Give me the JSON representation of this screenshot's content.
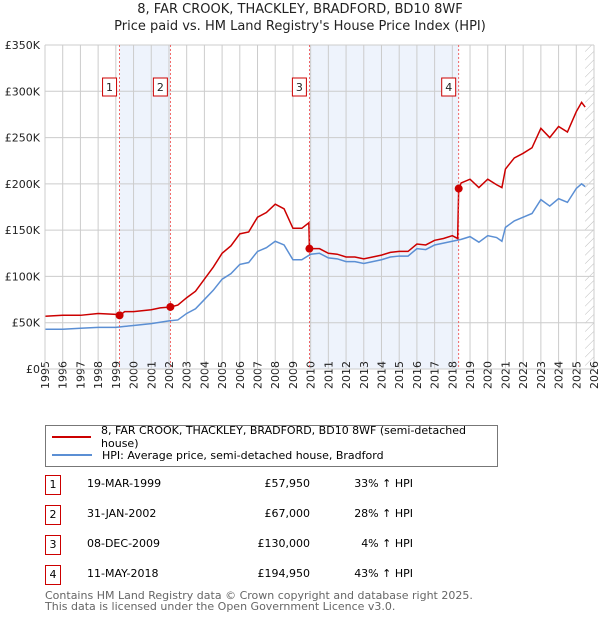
{
  "chart_data": {
    "type": "line",
    "title": "8, FAR CROOK, THACKLEY, BRADFORD, BD10 8WF",
    "subtitle": "Price paid vs. HM Land Registry's House Price Index (HPI)",
    "xlim": [
      1995,
      2026
    ],
    "ylim": [
      0,
      350000
    ],
    "x_ticks": [
      "1995",
      "1996",
      "1997",
      "1998",
      "1999",
      "2000",
      "2001",
      "2002",
      "2003",
      "2004",
      "2005",
      "2006",
      "2007",
      "2008",
      "2009",
      "2010",
      "2011",
      "2012",
      "2013",
      "2014",
      "2015",
      "2016",
      "2017",
      "2018",
      "2019",
      "2020",
      "2021",
      "2022",
      "2023",
      "2024",
      "2025",
      "2026"
    ],
    "y_ticks": [
      {
        "v": 0,
        "l": "£0"
      },
      {
        "v": 50000,
        "l": "£50K"
      },
      {
        "v": 100000,
        "l": "£100K"
      },
      {
        "v": 150000,
        "l": "£150K"
      },
      {
        "v": 200000,
        "l": "£200K"
      },
      {
        "v": 250000,
        "l": "£250K"
      },
      {
        "v": 300000,
        "l": "£300K"
      },
      {
        "v": 350000,
        "l": "£350K"
      }
    ],
    "grid": true,
    "series": [
      {
        "name": "8, FAR CROOK, THACKLEY, BRADFORD, BD10 8WF (semi-detached house)",
        "color": "#cc0000",
        "points": [
          [
            1995,
            57
          ],
          [
            1996,
            58
          ],
          [
            1997,
            58
          ],
          [
            1998,
            60
          ],
          [
            1999,
            59
          ],
          [
            1999.21,
            57.95
          ],
          [
            1999.5,
            62
          ],
          [
            2000,
            62
          ],
          [
            2001,
            64
          ],
          [
            2001.5,
            66
          ],
          [
            2002.08,
            67
          ],
          [
            2002.5,
            69
          ],
          [
            2003,
            77
          ],
          [
            2003.5,
            84
          ],
          [
            2004,
            97
          ],
          [
            2004.5,
            110
          ],
          [
            2005,
            125
          ],
          [
            2005.5,
            133
          ],
          [
            2006,
            146
          ],
          [
            2006.5,
            148
          ],
          [
            2007,
            164
          ],
          [
            2007.5,
            169
          ],
          [
            2008,
            178
          ],
          [
            2008.5,
            173
          ],
          [
            2009,
            152
          ],
          [
            2009.5,
            152
          ],
          [
            2009.9,
            158
          ],
          [
            2009.93,
            130
          ],
          [
            2010.5,
            130
          ],
          [
            2011,
            125
          ],
          [
            2011.5,
            124
          ],
          [
            2012,
            121
          ],
          [
            2012.5,
            121
          ],
          [
            2013,
            119
          ],
          [
            2013.5,
            121
          ],
          [
            2014,
            123
          ],
          [
            2014.5,
            126
          ],
          [
            2015,
            127
          ],
          [
            2015.5,
            127
          ],
          [
            2016,
            135
          ],
          [
            2016.5,
            134
          ],
          [
            2017,
            139
          ],
          [
            2017.5,
            141
          ],
          [
            2018,
            144
          ],
          [
            2018.3,
            141
          ],
          [
            2018.36,
            194.95
          ],
          [
            2018.5,
            201
          ],
          [
            2019,
            205
          ],
          [
            2019.5,
            196
          ],
          [
            2020,
            205
          ],
          [
            2020.5,
            199
          ],
          [
            2020.8,
            196
          ],
          [
            2021,
            216
          ],
          [
            2021.5,
            228
          ],
          [
            2022,
            233
          ],
          [
            2022.5,
            239
          ],
          [
            2023,
            260
          ],
          [
            2023.5,
            250
          ],
          [
            2024,
            262
          ],
          [
            2024.5,
            256
          ],
          [
            2025,
            278
          ],
          [
            2025.3,
            288
          ],
          [
            2025.5,
            283
          ]
        ]
      },
      {
        "name": "HPI: Average price, semi-detached house, Bradford",
        "color": "#5b8fd4",
        "points": [
          [
            1995,
            43
          ],
          [
            1996,
            43
          ],
          [
            1997,
            44
          ],
          [
            1998,
            45
          ],
          [
            1999,
            45
          ],
          [
            1999.5,
            46
          ],
          [
            2000,
            47
          ],
          [
            2001,
            49
          ],
          [
            2002,
            52
          ],
          [
            2002.5,
            53
          ],
          [
            2003,
            60
          ],
          [
            2003.5,
            65
          ],
          [
            2004,
            75
          ],
          [
            2004.5,
            85
          ],
          [
            2005,
            97
          ],
          [
            2005.5,
            103
          ],
          [
            2006,
            113
          ],
          [
            2006.5,
            115
          ],
          [
            2007,
            127
          ],
          [
            2007.5,
            131
          ],
          [
            2008,
            138
          ],
          [
            2008.5,
            134
          ],
          [
            2009,
            118
          ],
          [
            2009.5,
            118
          ],
          [
            2010,
            124
          ],
          [
            2010.5,
            125
          ],
          [
            2011,
            120
          ],
          [
            2011.5,
            119
          ],
          [
            2012,
            116
          ],
          [
            2012.5,
            116
          ],
          [
            2013,
            114
          ],
          [
            2013.5,
            116
          ],
          [
            2014,
            118
          ],
          [
            2014.5,
            121
          ],
          [
            2015,
            122
          ],
          [
            2015.5,
            122
          ],
          [
            2016,
            130
          ],
          [
            2016.5,
            129
          ],
          [
            2017,
            134
          ],
          [
            2017.5,
            136
          ],
          [
            2018,
            138
          ],
          [
            2018.5,
            140
          ],
          [
            2019,
            143
          ],
          [
            2019.5,
            137
          ],
          [
            2020,
            144
          ],
          [
            2020.5,
            142
          ],
          [
            2020.8,
            138
          ],
          [
            2021,
            153
          ],
          [
            2021.5,
            160
          ],
          [
            2022,
            164
          ],
          [
            2022.5,
            168
          ],
          [
            2023,
            183
          ],
          [
            2023.5,
            176
          ],
          [
            2024,
            184
          ],
          [
            2024.5,
            180
          ],
          [
            2025,
            195
          ],
          [
            2025.3,
            200
          ],
          [
            2025.5,
            197
          ]
        ]
      }
    ],
    "sales": [
      {
        "n": "1",
        "x": 1999.21,
        "y": 57950
      },
      {
        "n": "2",
        "x": 2002.08,
        "y": 67000
      },
      {
        "n": "3",
        "x": 2009.93,
        "y": 130000
      },
      {
        "n": "4",
        "x": 2018.36,
        "y": 194950
      }
    ],
    "shaded": [
      [
        1999.21,
        2002.08
      ],
      [
        2009.93,
        2018.36
      ]
    ],
    "hatched_from": 2025.5,
    "legend_placement": "bottom"
  },
  "table": [
    {
      "n": "1",
      "date": "19-MAR-1999",
      "price": "£57,950",
      "hpi": "33% ↑ HPI"
    },
    {
      "n": "2",
      "date": "31-JAN-2002",
      "price": "£67,000",
      "hpi": "28% ↑ HPI"
    },
    {
      "n": "3",
      "date": "08-DEC-2009",
      "price": "£130,000",
      "hpi": "4% ↑ HPI"
    },
    {
      "n": "4",
      "date": "11-MAY-2018",
      "price": "£194,950",
      "hpi": "43% ↑ HPI"
    }
  ],
  "footer": {
    "line1": "Contains HM Land Registry data © Crown copyright and database right 2025.",
    "line2": "This data is licensed under the Open Government Licence v3.0."
  }
}
